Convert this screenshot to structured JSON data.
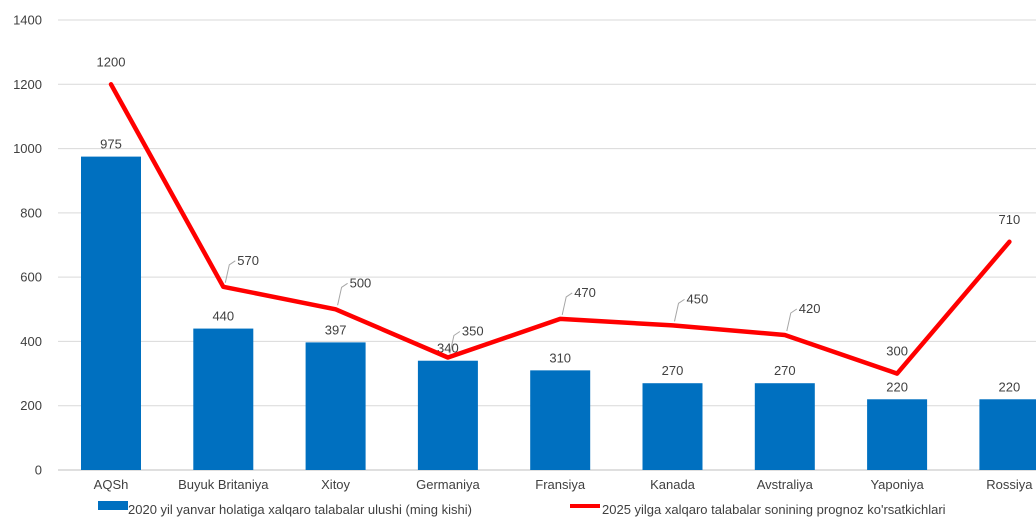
{
  "chart_data": {
    "type": "bar",
    "categories": [
      "AQSh",
      "Buyuk Britaniya",
      "Xitoy",
      "Germaniya",
      "Fransiya",
      "Kanada",
      "Avstraliya",
      "Yaponiya",
      "Rossiya"
    ],
    "series": [
      {
        "name": "2020 yil yanvar holatiga xalqaro talabalar ulushi (ming kishi)",
        "type": "bar",
        "color": "#0070C0",
        "values": [
          975,
          440,
          397,
          340,
          310,
          270,
          270,
          220,
          220
        ]
      },
      {
        "name": "2025 yilga xalqaro talabalar sonining prognoz ko'rsatkichlari",
        "type": "line",
        "color": "#FF0000",
        "values": [
          1200,
          570,
          500,
          350,
          470,
          450,
          420,
          300,
          710
        ]
      }
    ],
    "ylim": [
      0,
      1400
    ],
    "yticks": [
      0,
      200,
      400,
      600,
      800,
      1000,
      1200,
      1400
    ],
    "grid": true,
    "legend_position": "bottom"
  }
}
